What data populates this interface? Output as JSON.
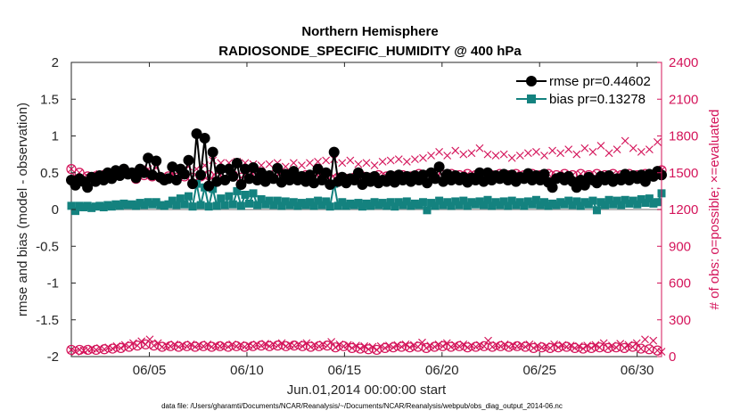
{
  "chart_data": {
    "type": "line",
    "title_line1": "Northern Hemisphere",
    "title_line2": "RADIOSONDE_SPECIFIC_HUMIDITY @ 400 hPa",
    "xlabel": "Jun.01,2014 00:00:00 start",
    "ylabel_left": "rmse and bias (model - observation)",
    "ylabel_right": "# of obs: o=possible; ×=evaluated",
    "footnote": "data file: /Users/gharamti/Documents/NCAR/Reanalysis/~/Documents/NCAR/Reanalysis/webpub/obs_diag_output_2014-06.nc",
    "x_range_days": [
      1,
      31.25
    ],
    "x_ticks": [
      {
        "day": 5,
        "label": "06/05"
      },
      {
        "day": 10,
        "label": "06/10"
      },
      {
        "day": 15,
        "label": "06/15"
      },
      {
        "day": 20,
        "label": "06/20"
      },
      {
        "day": 25,
        "label": "06/25"
      },
      {
        "day": 30,
        "label": "06/30"
      }
    ],
    "ylim_left": [
      -2,
      2
    ],
    "yticks_left": [
      "-2",
      "-1.5",
      "-1",
      "-0.5",
      "0",
      "0.5",
      "1",
      "1.5",
      "2"
    ],
    "ylim_right": [
      0,
      2400
    ],
    "yticks_right": [
      "0",
      "300",
      "600",
      "900",
      "1200",
      "1500",
      "1800",
      "2100",
      "2400"
    ],
    "legend": {
      "position": "top-right",
      "entries": [
        {
          "label": "rmse pr=0.44602",
          "series": "rmse"
        },
        {
          "label": "bias pr=0.13278",
          "series": "bias"
        }
      ]
    },
    "colors": {
      "rmse": "#000000",
      "bias": "#14827f",
      "obs": "#d4145a",
      "zero_line": "#a0a0a0"
    },
    "series": [
      {
        "name": "rmse",
        "values": [
          0.4,
          0.33,
          0.42,
          0.38,
          0.3,
          0.44,
          0.38,
          0.46,
          0.4,
          0.5,
          0.42,
          0.53,
          0.46,
          0.55,
          0.48,
          0.5,
          0.43,
          0.55,
          0.5,
          0.7,
          0.47,
          0.66,
          0.44,
          0.4,
          0.42,
          0.58,
          0.4,
          0.55,
          0.48,
          0.67,
          0.35,
          1.03,
          0.47,
          0.97,
          0.32,
          0.78,
          0.38,
          0.55,
          0.4,
          0.55,
          0.45,
          0.63,
          0.34,
          0.55,
          0.42,
          0.57,
          0.4,
          0.5,
          0.38,
          0.46,
          0.42,
          0.56,
          0.37,
          0.48,
          0.4,
          0.52,
          0.4,
          0.45,
          0.38,
          0.47,
          0.36,
          0.55,
          0.4,
          0.5,
          0.34,
          0.78,
          0.38,
          0.44,
          0.36,
          0.42,
          0.4,
          0.5,
          0.34,
          0.44,
          0.38,
          0.45,
          0.36,
          0.4,
          0.38,
          0.46,
          0.37,
          0.47,
          0.4,
          0.45,
          0.38,
          0.46,
          0.4,
          0.47,
          0.36,
          0.5,
          0.42,
          0.58,
          0.38,
          0.48,
          0.4,
          0.46,
          0.4,
          0.44,
          0.37,
          0.43,
          0.4,
          0.5,
          0.38,
          0.5,
          0.4,
          0.46,
          0.42,
          0.48,
          0.4,
          0.47,
          0.38,
          0.44,
          0.42,
          0.49,
          0.4,
          0.46,
          0.4,
          0.48,
          0.37,
          0.3,
          0.42,
          0.44,
          0.4,
          0.45,
          0.38,
          0.3,
          0.4,
          0.33,
          0.44,
          0.4,
          0.36,
          0.45,
          0.4,
          0.46,
          0.38,
          0.42,
          0.4,
          0.48,
          0.4,
          0.46,
          0.42,
          0.47,
          0.38,
          0.48,
          0.45,
          0.52,
          0.47
        ]
      },
      {
        "name": "bias",
        "values": [
          0.05,
          -0.02,
          0.05,
          0.03,
          0.05,
          0.02,
          0.04,
          0.05,
          0.03,
          0.06,
          0.04,
          0.07,
          0.05,
          0.08,
          0.06,
          0.07,
          0.05,
          0.09,
          0.06,
          0.1,
          0.07,
          0.1,
          0.06,
          0.05,
          0.07,
          0.12,
          0.06,
          0.15,
          0.07,
          0.18,
          0.04,
          0.35,
          0.06,
          0.3,
          0.04,
          0.28,
          0.05,
          0.15,
          0.06,
          0.18,
          0.07,
          0.25,
          0.05,
          0.2,
          0.08,
          0.22,
          0.06,
          0.14,
          0.07,
          0.12,
          0.06,
          0.12,
          0.05,
          0.11,
          0.06,
          0.1,
          0.05,
          0.09,
          0.06,
          0.1,
          0.05,
          0.12,
          0.06,
          0.11,
          0.04,
          0.35,
          0.05,
          0.1,
          0.05,
          0.08,
          0.06,
          0.09,
          0.04,
          0.08,
          0.05,
          0.1,
          0.06,
          0.09,
          0.05,
          0.1,
          0.04,
          0.1,
          0.06,
          0.11,
          0.05,
          0.08,
          0.06,
          0.1,
          -0.01,
          0.09,
          0.05,
          0.12,
          0.06,
          0.1,
          0.05,
          0.11,
          0.06,
          0.12,
          0.05,
          0.1,
          0.07,
          0.11,
          0.06,
          0.13,
          0.05,
          0.1,
          0.06,
          0.11,
          0.05,
          0.12,
          0.06,
          0.1,
          0.05,
          0.11,
          0.07,
          0.13,
          0.06,
          0.1,
          0.05,
          0.08,
          0.06,
          0.1,
          0.07,
          0.12,
          0.06,
          0.11,
          0.05,
          0.1,
          0.07,
          0.12,
          -0.01,
          0.1,
          0.06,
          0.13,
          0.07,
          0.12,
          0.06,
          0.13,
          0.08,
          0.12,
          0.07,
          0.14,
          0.09,
          0.15,
          0.08,
          0.1,
          0.22
        ]
      },
      {
        "name": "obs_possible",
        "values": [
          55,
          40,
          55,
          50,
          55,
          65,
          55,
          70,
          60,
          75,
          65,
          85,
          70,
          95,
          80,
          110,
          90,
          125,
          100,
          140,
          90,
          110,
          80,
          90,
          85,
          100,
          80,
          95,
          85,
          100,
          80,
          95,
          85,
          100,
          80,
          90,
          85,
          95,
          80,
          100,
          85,
          95,
          80,
          90,
          85,
          100,
          90,
          105,
          85,
          100,
          90,
          110,
          85,
          95,
          90,
          100,
          85,
          110,
          80,
          95,
          85,
          100,
          90,
          120,
          75,
          100,
          85,
          95,
          70,
          90,
          65,
          85,
          60,
          80,
          55,
          85,
          70,
          90,
          75,
          95,
          80,
          100,
          75,
          95,
          80,
          115,
          70,
          90,
          80,
          100,
          85,
          110,
          80,
          95,
          85,
          100,
          75,
          90,
          80,
          95,
          85,
          130,
          80,
          95,
          85,
          100,
          80,
          90,
          85,
          95,
          80,
          100,
          70,
          90,
          75,
          85,
          70,
          100,
          75,
          95,
          80,
          90,
          70,
          85,
          65,
          90,
          70,
          95,
          75,
          110,
          70,
          90,
          75,
          105,
          70,
          95,
          80,
          110,
          65,
          140,
          60,
          130,
          50,
          40
        ]
      },
      {
        "name": "obs_possible_upper",
        "values": [
          1530,
          1470,
          1500,
          1460,
          1470,
          1480,
          1470,
          1490,
          1480,
          1500,
          1490,
          1510,
          1480,
          1520,
          1490,
          1510,
          1450,
          1500,
          1480,
          1530,
          1470,
          1540,
          1460,
          1460,
          1470,
          1500,
          1460,
          1510,
          1470,
          1550,
          1460,
          1530,
          1470,
          1560,
          1480,
          1600,
          1460,
          1580,
          1470,
          1580,
          1480,
          1590,
          1460,
          1580,
          1470,
          1570,
          1480,
          1560,
          1470,
          1570,
          1480,
          1580,
          1460,
          1550,
          1470,
          1580,
          1460,
          1560,
          1480,
          1580,
          1470,
          1590,
          1480,
          1600,
          1450,
          1610,
          1460,
          1580,
          1450,
          1600,
          1460,
          1570,
          1470,
          1580,
          1460,
          1560,
          1480,
          1590,
          1470,
          1600,
          1470,
          1610,
          1480,
          1590,
          1470,
          1610,
          1490,
          1620,
          1480,
          1640,
          1490,
          1670,
          1480,
          1640,
          1490,
          1680,
          1480,
          1650,
          1490,
          1660,
          1480,
          1700,
          1490,
          1650,
          1480,
          1640,
          1490,
          1650,
          1480,
          1620,
          1490,
          1640,
          1480,
          1660,
          1490,
          1670,
          1480,
          1640,
          1490,
          1680,
          1480,
          1660,
          1490,
          1690,
          1480,
          1650,
          1490,
          1700,
          1480,
          1670,
          1490,
          1720,
          1480,
          1660,
          1490,
          1690,
          1480,
          1760,
          1490,
          1700,
          1480,
          1670,
          1490,
          1690,
          1480,
          1750,
          1520
        ]
      }
    ]
  }
}
